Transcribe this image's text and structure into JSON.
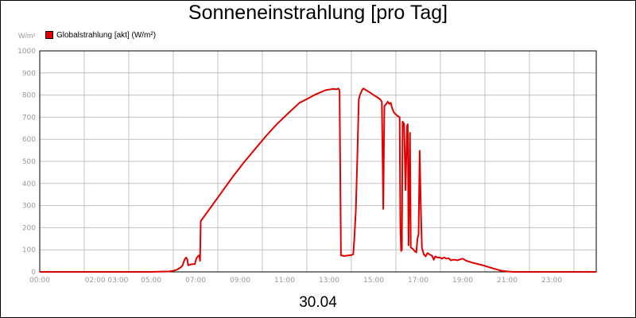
{
  "title": "Sonneneinstrahlung [pro Tag]",
  "unit_label": "W/m²",
  "date_label": "30.04",
  "chart_data": {
    "type": "line",
    "title": "Sonneneinstrahlung [pro Tag]",
    "xlabel": "",
    "ylabel": "W/m²",
    "xlim": [
      0,
      1500
    ],
    "ylim": [
      0,
      1000
    ],
    "y_ticks": [
      0,
      100,
      200,
      300,
      400,
      500,
      600,
      700,
      800,
      900,
      1000
    ],
    "x_ticks": [
      {
        "x": 0,
        "label": "00:00"
      },
      {
        "x": 180,
        "label": "02:00 03:00"
      },
      {
        "x": 300,
        "label": "05:00"
      },
      {
        "x": 420,
        "label": "07:00"
      },
      {
        "x": 540,
        "label": "09:00"
      },
      {
        "x": 660,
        "label": "11:00"
      },
      {
        "x": 780,
        "label": "13:00"
      },
      {
        "x": 900,
        "label": "15:00"
      },
      {
        "x": 1020,
        "label": "17:00"
      },
      {
        "x": 1140,
        "label": "19:00"
      },
      {
        "x": 1260,
        "label": "21:00"
      },
      {
        "x": 1380,
        "label": "23:00"
      }
    ],
    "grid": true,
    "legend_position": "top-left",
    "colors": {
      "line": "#e00000",
      "grid": "#c0c0c0",
      "axis_text": "#999999"
    },
    "series": [
      {
        "name": "Globalstrahlung [akt] (W/m²)",
        "points": [
          [
            0,
            0
          ],
          [
            300,
            0
          ],
          [
            350,
            2
          ],
          [
            360,
            5
          ],
          [
            370,
            10
          ],
          [
            380,
            20
          ],
          [
            385,
            30
          ],
          [
            388,
            45
          ],
          [
            392,
            60
          ],
          [
            395,
            65
          ],
          [
            398,
            55
          ],
          [
            400,
            30
          ],
          [
            410,
            35
          ],
          [
            418,
            35
          ],
          [
            422,
            60
          ],
          [
            426,
            70
          ],
          [
            430,
            75
          ],
          [
            432,
            50
          ],
          [
            434,
            230
          ],
          [
            460,
            290
          ],
          [
            490,
            360
          ],
          [
            520,
            430
          ],
          [
            550,
            495
          ],
          [
            580,
            555
          ],
          [
            610,
            615
          ],
          [
            640,
            670
          ],
          [
            670,
            718
          ],
          [
            700,
            765
          ],
          [
            720,
            782
          ],
          [
            740,
            800
          ],
          [
            760,
            815
          ],
          [
            770,
            822
          ],
          [
            780,
            825
          ],
          [
            790,
            828
          ],
          [
            800,
            826
          ],
          [
            805,
            830
          ],
          [
            808,
            820
          ],
          [
            812,
            75
          ],
          [
            820,
            72
          ],
          [
            830,
            74
          ],
          [
            840,
            76
          ],
          [
            845,
            80
          ],
          [
            848,
            150
          ],
          [
            852,
            280
          ],
          [
            856,
            520
          ],
          [
            860,
            780
          ],
          [
            863,
            800
          ],
          [
            868,
            820
          ],
          [
            872,
            830
          ],
          [
            880,
            822
          ],
          [
            890,
            812
          ],
          [
            900,
            800
          ],
          [
            910,
            790
          ],
          [
            918,
            780
          ],
          [
            922,
            770
          ],
          [
            926,
            285
          ],
          [
            929,
            750
          ],
          [
            934,
            760
          ],
          [
            938,
            770
          ],
          [
            942,
            760
          ],
          [
            946,
            765
          ],
          [
            950,
            740
          ],
          [
            955,
            720
          ],
          [
            960,
            712
          ],
          [
            965,
            705
          ],
          [
            970,
            700
          ],
          [
            972,
            210
          ],
          [
            974,
            95
          ],
          [
            976,
            100
          ],
          [
            978,
            680
          ],
          [
            982,
            670
          ],
          [
            986,
            370
          ],
          [
            990,
            660
          ],
          [
            992,
            668
          ],
          [
            994,
            120
          ],
          [
            998,
            630
          ],
          [
            1000,
            110
          ],
          [
            1005,
            105
          ],
          [
            1010,
            95
          ],
          [
            1015,
            88
          ],
          [
            1018,
            150
          ],
          [
            1021,
            170
          ],
          [
            1024,
            548
          ],
          [
            1027,
            300
          ],
          [
            1030,
            110
          ],
          [
            1035,
            80
          ],
          [
            1040,
            70
          ],
          [
            1045,
            85
          ],
          [
            1050,
            80
          ],
          [
            1058,
            72
          ],
          [
            1062,
            55
          ],
          [
            1066,
            70
          ],
          [
            1072,
            65
          ],
          [
            1078,
            65
          ],
          [
            1084,
            60
          ],
          [
            1090,
            65
          ],
          [
            1096,
            60
          ],
          [
            1102,
            62
          ],
          [
            1108,
            52
          ],
          [
            1114,
            55
          ],
          [
            1120,
            55
          ],
          [
            1126,
            52
          ],
          [
            1132,
            56
          ],
          [
            1140,
            60
          ],
          [
            1150,
            50
          ],
          [
            1170,
            40
          ],
          [
            1190,
            32
          ],
          [
            1210,
            22
          ],
          [
            1230,
            12
          ],
          [
            1245,
            5
          ],
          [
            1260,
            2
          ],
          [
            1275,
            0
          ],
          [
            1500,
            0
          ]
        ]
      }
    ]
  }
}
